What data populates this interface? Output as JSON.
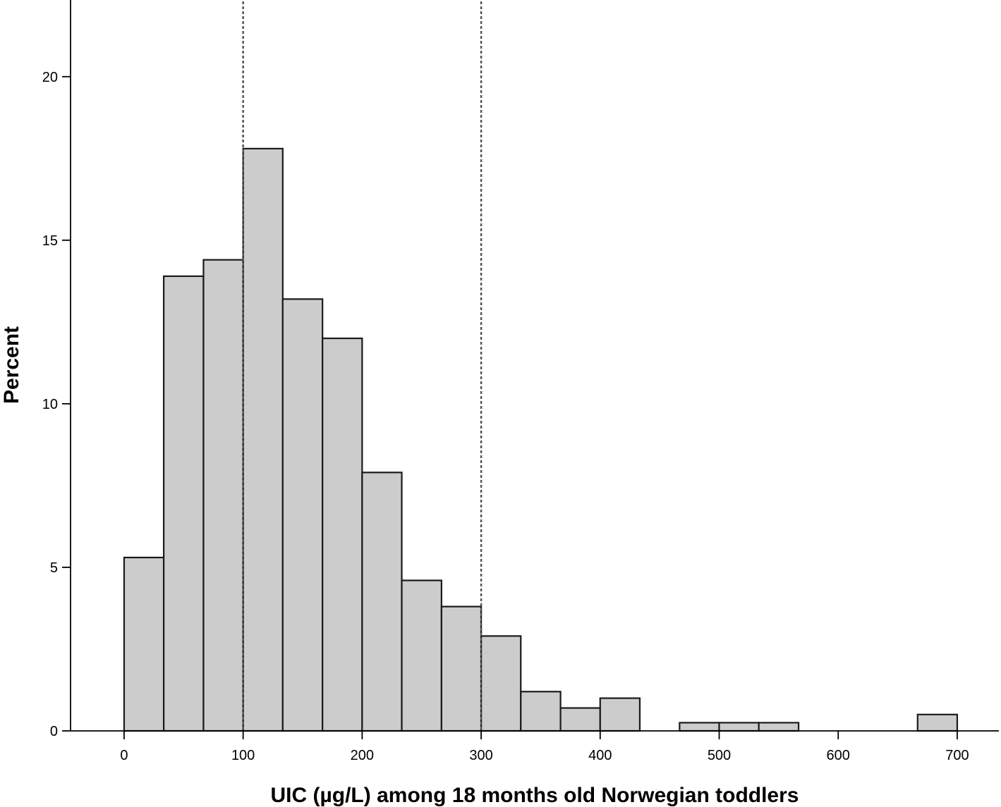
{
  "chart_data": {
    "type": "bar",
    "subtype": "histogram",
    "title": "",
    "xlabel": "UIC (µg/L) among 18 months old Norwegian toddlers",
    "ylabel": "Percent",
    "xlim": [
      -45,
      735
    ],
    "ylim": [
      0,
      22.3
    ],
    "x_ticks": [
      0,
      100,
      200,
      300,
      400,
      500,
      600,
      700
    ],
    "y_ticks": [
      0,
      5,
      10,
      15,
      20
    ],
    "bin_width": 33.3,
    "bins": [
      {
        "start": 0,
        "end": 33.3,
        "value": 5.3
      },
      {
        "start": 33.3,
        "end": 66.7,
        "value": 13.9
      },
      {
        "start": 66.7,
        "end": 100,
        "value": 14.4
      },
      {
        "start": 100,
        "end": 133.3,
        "value": 17.8
      },
      {
        "start": 133.3,
        "end": 166.7,
        "value": 13.2
      },
      {
        "start": 166.7,
        "end": 200,
        "value": 12.0
      },
      {
        "start": 200,
        "end": 233.3,
        "value": 7.9
      },
      {
        "start": 233.3,
        "end": 266.7,
        "value": 4.6
      },
      {
        "start": 266.7,
        "end": 300,
        "value": 3.8
      },
      {
        "start": 300,
        "end": 333.3,
        "value": 2.9
      },
      {
        "start": 333.3,
        "end": 366.7,
        "value": 1.2
      },
      {
        "start": 366.7,
        "end": 400,
        "value": 0.7
      },
      {
        "start": 400,
        "end": 433.3,
        "value": 1.0
      },
      {
        "start": 433.3,
        "end": 466.7,
        "value": 0.0
      },
      {
        "start": 466.7,
        "end": 500,
        "value": 0.25
      },
      {
        "start": 500,
        "end": 533.3,
        "value": 0.25
      },
      {
        "start": 533.3,
        "end": 566.7,
        "value": 0.25
      },
      {
        "start": 566.7,
        "end": 600,
        "value": 0.0
      },
      {
        "start": 600,
        "end": 633.3,
        "value": 0.0
      },
      {
        "start": 633.3,
        "end": 666.7,
        "value": 0.0
      },
      {
        "start": 666.7,
        "end": 700,
        "value": 0.5
      }
    ],
    "reference_lines": [
      {
        "x": 100,
        "style": "dotted"
      },
      {
        "x": 300,
        "style": "dotted"
      }
    ],
    "grid": false,
    "legend": "none",
    "colors": {
      "bar_fill": "#cccccc",
      "bar_stroke": "#1a1a1a",
      "axis": "#000000",
      "reference_line": "#555555"
    }
  }
}
